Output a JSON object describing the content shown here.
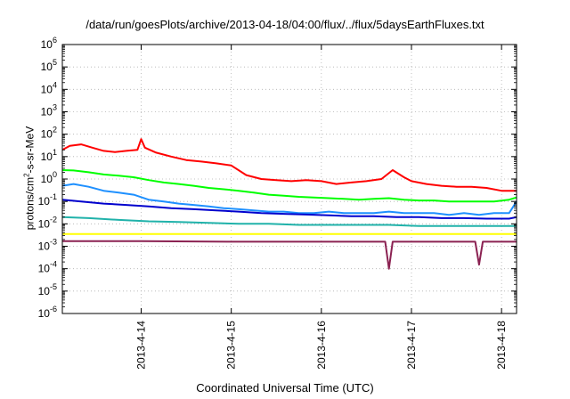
{
  "chart_data": {
    "type": "line",
    "title": "/data/run/goesPlots/archive/2013-04-18/04:00/flux/../flux/5daysEarthFluxes.txt",
    "xlabel": "Coordinated Universal Time (UTC)",
    "ylabel": {
      "prefix": "protons/cm",
      "sup": "2",
      "suffix": "-s-sr-MeV"
    },
    "y_scale": "log",
    "ylim": [
      1e-06,
      1000000
    ],
    "xlim": [
      "2013-04-13 03:00",
      "2013-04-18 04:00"
    ],
    "y_tick_labels": [
      {
        "base": "10",
        "exp": "6",
        "value": 1000000
      },
      {
        "base": "10",
        "exp": "5",
        "value": 100000
      },
      {
        "base": "10",
        "exp": "4",
        "value": 10000
      },
      {
        "base": "10",
        "exp": "3",
        "value": 1000
      },
      {
        "base": "10",
        "exp": "2",
        "value": 100
      },
      {
        "base": "10",
        "exp": "1",
        "value": 10
      },
      {
        "base": "10",
        "exp": "0",
        "value": 1
      },
      {
        "base": "10",
        "exp": "-1",
        "value": 0.1
      },
      {
        "base": "10",
        "exp": "-2",
        "value": 0.01
      },
      {
        "base": "10",
        "exp": "-3",
        "value": 0.001
      },
      {
        "base": "10",
        "exp": "-4",
        "value": 0.0001
      },
      {
        "base": "10",
        "exp": "-5",
        "value": 1e-05
      },
      {
        "base": "10",
        "exp": "-6",
        "value": 1e-06
      }
    ],
    "x_tick_labels": [
      {
        "label": "2013-4-14",
        "value": "2013-04-14 00:00"
      },
      {
        "label": "2013-4-15",
        "value": "2013-04-15 00:00"
      },
      {
        "label": "2013-4-16",
        "value": "2013-04-16 00:00"
      },
      {
        "label": "2013-4-17",
        "value": "2013-04-17 00:00"
      },
      {
        "label": "2013-4-18",
        "value": "2013-04-18 00:00"
      }
    ],
    "grid": true,
    "legend": "none",
    "series": [
      {
        "color": "#ff0000",
        "points": [
          [
            "2013-04-13 03:00",
            20
          ],
          [
            "2013-04-13 05:00",
            30
          ],
          [
            "2013-04-13 08:00",
            35
          ],
          [
            "2013-04-13 11:00",
            25
          ],
          [
            "2013-04-13 14:00",
            18
          ],
          [
            "2013-04-13 17:00",
            16
          ],
          [
            "2013-04-13 20:00",
            18
          ],
          [
            "2013-04-13 23:00",
            20
          ],
          [
            "2013-04-14 00:00",
            60
          ],
          [
            "2013-04-14 01:00",
            25
          ],
          [
            "2013-04-14 04:00",
            15
          ],
          [
            "2013-04-14 08:00",
            10
          ],
          [
            "2013-04-14 12:00",
            7
          ],
          [
            "2013-04-14 16:00",
            6
          ],
          [
            "2013-04-14 20:00",
            5
          ],
          [
            "2013-04-15 00:00",
            4
          ],
          [
            "2013-04-15 04:00",
            1.5
          ],
          [
            "2013-04-15 08:00",
            1.0
          ],
          [
            "2013-04-15 12:00",
            0.9
          ],
          [
            "2013-04-15 16:00",
            0.8
          ],
          [
            "2013-04-15 20:00",
            0.9
          ],
          [
            "2013-04-16 00:00",
            0.8
          ],
          [
            "2013-04-16 04:00",
            0.6
          ],
          [
            "2013-04-16 08:00",
            0.7
          ],
          [
            "2013-04-16 12:00",
            0.8
          ],
          [
            "2013-04-16 16:00",
            1.0
          ],
          [
            "2013-04-16 19:00",
            2.5
          ],
          [
            "2013-04-16 22:00",
            1.2
          ],
          [
            "2013-04-17 00:00",
            0.8
          ],
          [
            "2013-04-17 04:00",
            0.6
          ],
          [
            "2013-04-17 08:00",
            0.5
          ],
          [
            "2013-04-17 12:00",
            0.45
          ],
          [
            "2013-04-17 16:00",
            0.45
          ],
          [
            "2013-04-17 20:00",
            0.4
          ],
          [
            "2013-04-18 00:00",
            0.3
          ],
          [
            "2013-04-18 04:00",
            0.3
          ]
        ]
      },
      {
        "color": "#00ff00",
        "points": [
          [
            "2013-04-13 03:00",
            2.5
          ],
          [
            "2013-04-13 06:00",
            2.4
          ],
          [
            "2013-04-13 10:00",
            2.0
          ],
          [
            "2013-04-13 14:00",
            1.6
          ],
          [
            "2013-04-13 18:00",
            1.4
          ],
          [
            "2013-04-13 22:00",
            1.2
          ],
          [
            "2013-04-14 02:00",
            0.9
          ],
          [
            "2013-04-14 06:00",
            0.7
          ],
          [
            "2013-04-14 10:00",
            0.6
          ],
          [
            "2013-04-14 14:00",
            0.5
          ],
          [
            "2013-04-14 18:00",
            0.4
          ],
          [
            "2013-04-14 22:00",
            0.35
          ],
          [
            "2013-04-15 02:00",
            0.3
          ],
          [
            "2013-04-15 06:00",
            0.25
          ],
          [
            "2013-04-15 10:00",
            0.2
          ],
          [
            "2013-04-15 14:00",
            0.18
          ],
          [
            "2013-04-15 18:00",
            0.16
          ],
          [
            "2013-04-15 22:00",
            0.15
          ],
          [
            "2013-04-16 02:00",
            0.14
          ],
          [
            "2013-04-16 06:00",
            0.13
          ],
          [
            "2013-04-16 10:00",
            0.12
          ],
          [
            "2013-04-16 14:00",
            0.13
          ],
          [
            "2013-04-16 18:00",
            0.14
          ],
          [
            "2013-04-16 22:00",
            0.12
          ],
          [
            "2013-04-17 02:00",
            0.11
          ],
          [
            "2013-04-17 06:00",
            0.11
          ],
          [
            "2013-04-17 10:00",
            0.1
          ],
          [
            "2013-04-17 14:00",
            0.1
          ],
          [
            "2013-04-17 18:00",
            0.1
          ],
          [
            "2013-04-17 22:00",
            0.1
          ],
          [
            "2013-04-18 02:00",
            0.12
          ],
          [
            "2013-04-18 04:00",
            0.15
          ]
        ]
      },
      {
        "color": "#1e90ff",
        "points": [
          [
            "2013-04-13 03:00",
            0.5
          ],
          [
            "2013-04-13 06:00",
            0.6
          ],
          [
            "2013-04-13 10:00",
            0.45
          ],
          [
            "2013-04-13 14:00",
            0.3
          ],
          [
            "2013-04-13 18:00",
            0.25
          ],
          [
            "2013-04-13 22:00",
            0.2
          ],
          [
            "2013-04-14 02:00",
            0.12
          ],
          [
            "2013-04-14 06:00",
            0.1
          ],
          [
            "2013-04-14 10:00",
            0.08
          ],
          [
            "2013-04-14 14:00",
            0.07
          ],
          [
            "2013-04-14 18:00",
            0.06
          ],
          [
            "2013-04-14 22:00",
            0.05
          ],
          [
            "2013-04-15 02:00",
            0.045
          ],
          [
            "2013-04-15 06:00",
            0.04
          ],
          [
            "2013-04-15 10:00",
            0.035
          ],
          [
            "2013-04-15 14:00",
            0.035
          ],
          [
            "2013-04-15 18:00",
            0.03
          ],
          [
            "2013-04-15 22:00",
            0.03
          ],
          [
            "2013-04-16 02:00",
            0.035
          ],
          [
            "2013-04-16 06:00",
            0.03
          ],
          [
            "2013-04-16 10:00",
            0.03
          ],
          [
            "2013-04-16 14:00",
            0.03
          ],
          [
            "2013-04-16 18:00",
            0.035
          ],
          [
            "2013-04-16 22:00",
            0.03
          ],
          [
            "2013-04-17 02:00",
            0.03
          ],
          [
            "2013-04-17 06:00",
            0.03
          ],
          [
            "2013-04-17 10:00",
            0.025
          ],
          [
            "2013-04-17 14:00",
            0.03
          ],
          [
            "2013-04-17 18:00",
            0.025
          ],
          [
            "2013-04-17 22:00",
            0.03
          ],
          [
            "2013-04-18 02:00",
            0.03
          ],
          [
            "2013-04-18 04:00",
            0.1
          ]
        ]
      },
      {
        "color": "#0000cd",
        "points": [
          [
            "2013-04-13 03:00",
            0.12
          ],
          [
            "2013-04-13 08:00",
            0.1
          ],
          [
            "2013-04-13 14:00",
            0.08
          ],
          [
            "2013-04-13 20:00",
            0.07
          ],
          [
            "2013-04-14 02:00",
            0.06
          ],
          [
            "2013-04-14 08:00",
            0.05
          ],
          [
            "2013-04-14 14:00",
            0.045
          ],
          [
            "2013-04-14 20:00",
            0.04
          ],
          [
            "2013-04-15 02:00",
            0.035
          ],
          [
            "2013-04-15 08:00",
            0.03
          ],
          [
            "2013-04-15 14:00",
            0.028
          ],
          [
            "2013-04-15 20:00",
            0.026
          ],
          [
            "2013-04-16 02:00",
            0.024
          ],
          [
            "2013-04-16 08:00",
            0.022
          ],
          [
            "2013-04-16 14:00",
            0.022
          ],
          [
            "2013-04-16 20:00",
            0.02
          ],
          [
            "2013-04-17 02:00",
            0.02
          ],
          [
            "2013-04-17 08:00",
            0.018
          ],
          [
            "2013-04-17 14:00",
            0.018
          ],
          [
            "2013-04-17 20:00",
            0.017
          ],
          [
            "2013-04-18 02:00",
            0.017
          ],
          [
            "2013-04-18 04:00",
            0.02
          ]
        ]
      },
      {
        "color": "#20b2aa",
        "points": [
          [
            "2013-04-13 03:00",
            0.02
          ],
          [
            "2013-04-13 10:00",
            0.018
          ],
          [
            "2013-04-13 18:00",
            0.015
          ],
          [
            "2013-04-14 02:00",
            0.013
          ],
          [
            "2013-04-14 10:00",
            0.012
          ],
          [
            "2013-04-14 18:00",
            0.011
          ],
          [
            "2013-04-15 02:00",
            0.01
          ],
          [
            "2013-04-15 10:00",
            0.01
          ],
          [
            "2013-04-15 18:00",
            0.009
          ],
          [
            "2013-04-16 02:00",
            0.009
          ],
          [
            "2013-04-16 10:00",
            0.009
          ],
          [
            "2013-04-16 18:00",
            0.009
          ],
          [
            "2013-04-17 02:00",
            0.008
          ],
          [
            "2013-04-17 10:00",
            0.008
          ],
          [
            "2013-04-17 18:00",
            0.008
          ],
          [
            "2013-04-18 04:00",
            0.008
          ]
        ]
      },
      {
        "color": "#ffff00",
        "points": [
          [
            "2013-04-13 03:00",
            0.0035
          ],
          [
            "2013-04-14 00:00",
            0.0035
          ],
          [
            "2013-04-15 00:00",
            0.0035
          ],
          [
            "2013-04-16 00:00",
            0.0035
          ],
          [
            "2013-04-17 00:00",
            0.0035
          ],
          [
            "2013-04-18 00:00",
            0.0035
          ],
          [
            "2013-04-18 04:00",
            0.0035
          ]
        ]
      },
      {
        "color": "#8b2252",
        "points": [
          [
            "2013-04-13 03:00",
            0.0017
          ],
          [
            "2013-04-14 00:00",
            0.0017
          ],
          [
            "2013-04-15 00:00",
            0.0016
          ],
          [
            "2013-04-16 00:00",
            0.0016
          ],
          [
            "2013-04-16 17:00",
            0.0016
          ],
          [
            "2013-04-16 18:00",
            0.0001
          ],
          [
            "2013-04-16 19:00",
            0.0016
          ],
          [
            "2013-04-17 00:00",
            0.0016
          ],
          [
            "2013-04-17 17:00",
            0.0016
          ],
          [
            "2013-04-17 18:00",
            0.00015
          ],
          [
            "2013-04-17 19:00",
            0.0016
          ],
          [
            "2013-04-18 00:00",
            0.0016
          ],
          [
            "2013-04-18 04:00",
            0.0016
          ]
        ]
      }
    ]
  }
}
